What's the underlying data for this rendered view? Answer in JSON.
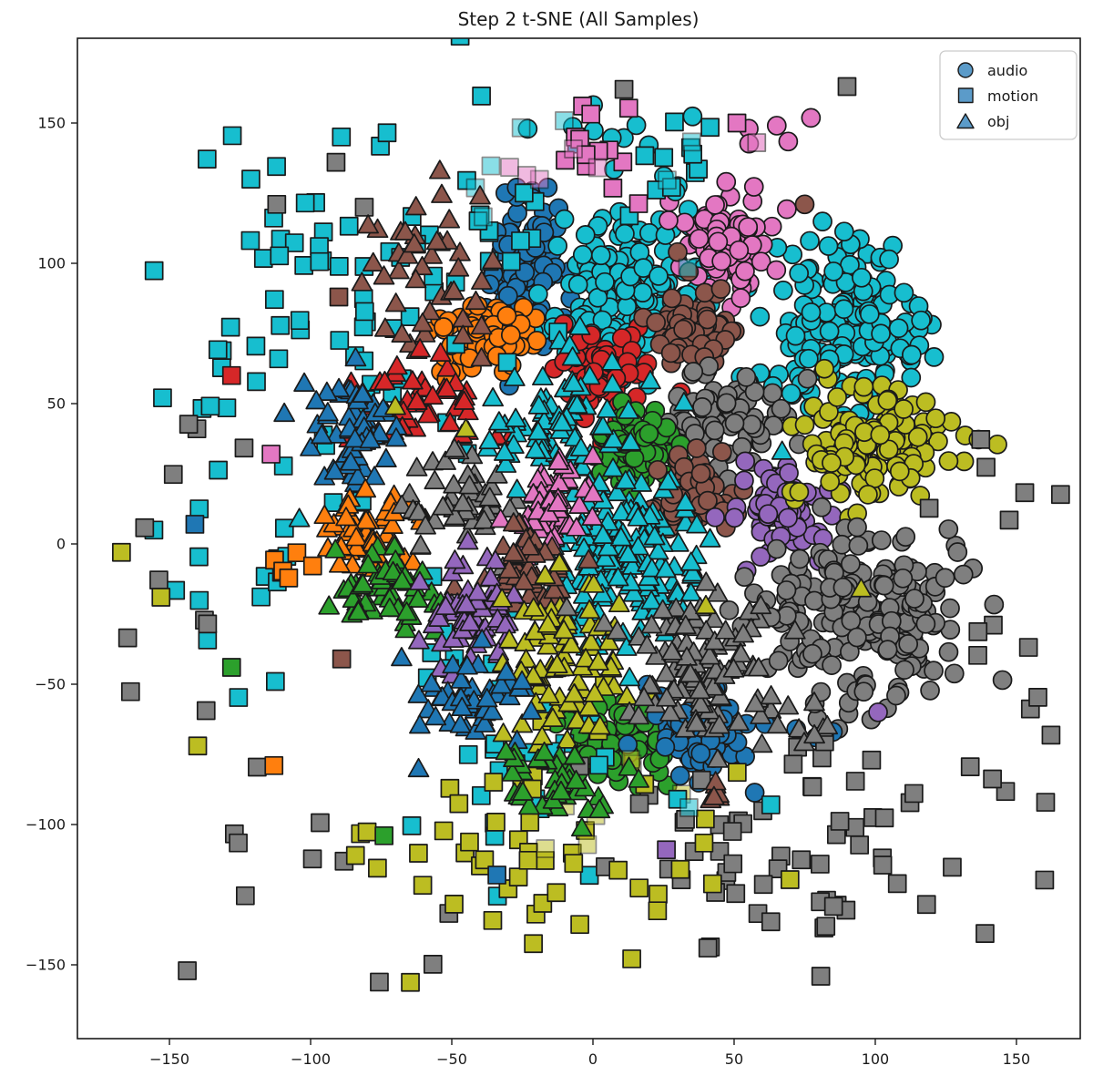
{
  "title": "Step 2 t-SNE (All Samples)",
  "legend": {
    "items": [
      {
        "label": "audio",
        "shape": "circle"
      },
      {
        "label": "motion",
        "shape": "square"
      },
      {
        "label": "obj",
        "shape": "triangle"
      }
    ],
    "marker_color": "#5b9bc9",
    "edge_color": "#1a1a1a"
  },
  "chart_data": {
    "type": "scatter",
    "title": "Step 2 t-SNE (All Samples)",
    "xlabel": "",
    "ylabel": "",
    "xlim": [
      -182.6,
      172.6
    ],
    "ylim": [
      -176.3,
      180.2
    ],
    "x_ticks": [
      -150,
      -100,
      -50,
      0,
      50,
      100,
      150
    ],
    "y_ticks": [
      -150,
      -100,
      -50,
      0,
      50,
      100,
      150
    ],
    "grid": false,
    "legend_position": "upper right",
    "series_shapes": {
      "audio": "circle",
      "motion": "square",
      "obj": "triangle"
    },
    "marker_edge_color": "#1a1a1a",
    "palette": {
      "blue": "#1f77b4",
      "orange": "#ff7f0e",
      "green": "#2ca02c",
      "red": "#d62728",
      "purple": "#9467bd",
      "brown": "#8c564b",
      "pink": "#e377c2",
      "gray": "#7f7f7f",
      "olive": "#bcbd22",
      "cyan": "#17becf"
    },
    "clusters": [
      {
        "series": "audio",
        "color": "blue",
        "x": -25,
        "y": 99,
        "sx": 7,
        "sy": 13,
        "n": 85
      },
      {
        "series": "audio",
        "color": "cyan",
        "x": 13,
        "y": 90,
        "sx": 15,
        "sy": 13,
        "n": 170
      },
      {
        "series": "audio",
        "color": "cyan",
        "x": 89,
        "y": 77,
        "sx": 14,
        "sy": 14,
        "n": 190
      },
      {
        "series": "audio",
        "color": "pink",
        "x": 47,
        "y": 106,
        "sx": 8,
        "sy": 8,
        "n": 85
      },
      {
        "series": "audio",
        "color": "orange",
        "x": -40,
        "y": 74,
        "sx": 9,
        "sy": 7,
        "n": 75
      },
      {
        "series": "audio",
        "color": "red",
        "x": 4,
        "y": 61,
        "sx": 8,
        "sy": 8,
        "n": 70
      },
      {
        "series": "audio",
        "color": "brown",
        "x": 36,
        "y": 76,
        "sx": 8,
        "sy": 7,
        "n": 65
      },
      {
        "series": "audio",
        "color": "gray",
        "x": 47,
        "y": 45,
        "sx": 11,
        "sy": 9,
        "n": 85
      },
      {
        "series": "audio",
        "color": "green",
        "x": 17,
        "y": 33,
        "sx": 7,
        "sy": 8,
        "n": 75
      },
      {
        "series": "audio",
        "color": "brown",
        "x": 37,
        "y": 18,
        "sx": 7,
        "sy": 7,
        "n": 60
      },
      {
        "series": "audio",
        "color": "purple",
        "x": 67,
        "y": 12,
        "sx": 8,
        "sy": 9,
        "n": 70
      },
      {
        "series": "audio",
        "color": "olive",
        "x": 99,
        "y": 34,
        "sx": 15,
        "sy": 10,
        "n": 140
      },
      {
        "series": "audio",
        "color": "gray",
        "x": 95,
        "y": -25,
        "sx": 17,
        "sy": 16,
        "n": 230
      },
      {
        "series": "audio",
        "color": "green",
        "x": 9,
        "y": -70,
        "sx": 8,
        "sy": 7,
        "n": 70
      },
      {
        "series": "audio",
        "color": "blue",
        "x": 38,
        "y": -69,
        "sx": 9,
        "sy": 7,
        "n": 70
      },
      {
        "series": "audio",
        "color": "cyan",
        "x": 12,
        "y": 140,
        "sx": 18,
        "sy": 12,
        "n": 12
      },
      {
        "series": "audio",
        "color": "pink",
        "x": 55,
        "y": 136,
        "sx": 10,
        "sy": 10,
        "n": 8
      },
      {
        "series": "motion",
        "color": "cyan",
        "x": -76,
        "y": 106,
        "sx": 40,
        "sy": 27,
        "n": 68
      },
      {
        "series": "motion",
        "color": "cyan",
        "x": 25,
        "y": 140,
        "sx": 12,
        "sy": 10,
        "n": 10
      },
      {
        "series": "motion",
        "color": "cyan",
        "x": -30,
        "y": 128,
        "sx": 28,
        "sy": 16,
        "n": 8,
        "opacity": 0.5
      },
      {
        "series": "motion",
        "color": "cyan",
        "x": -110,
        "y": 15,
        "sx": 25,
        "sy": 40,
        "n": 36
      },
      {
        "series": "motion",
        "color": "cyan",
        "x": -30,
        "y": -40,
        "sx": 16,
        "sy": 28,
        "n": 22
      },
      {
        "series": "motion",
        "color": "cyan",
        "x": -15,
        "y": -88,
        "sx": 28,
        "sy": 16,
        "n": 10
      },
      {
        "series": "motion",
        "color": "pink",
        "x": 0,
        "y": 141,
        "sx": 14,
        "sy": 9,
        "n": 13
      },
      {
        "series": "motion",
        "color": "pink",
        "x": -4,
        "y": 137,
        "sx": 12,
        "sy": 8,
        "n": 5,
        "opacity": 0.5
      },
      {
        "series": "motion",
        "color": "gray",
        "x": -145,
        "y": -5,
        "sx": 15,
        "sy": 33,
        "n": 13
      },
      {
        "series": "motion",
        "color": "gray",
        "x": -105,
        "y": -122,
        "sx": 26,
        "sy": 20,
        "n": 9
      },
      {
        "series": "motion",
        "color": "gray",
        "x": 72,
        "y": -110,
        "sx": 31,
        "sy": 21,
        "n": 60
      },
      {
        "series": "motion",
        "color": "gray",
        "x": 147,
        "y": -40,
        "sx": 11,
        "sy": 46,
        "n": 18
      },
      {
        "series": "motion",
        "color": "olive",
        "x": -25,
        "y": -110,
        "sx": 38,
        "sy": 21,
        "n": 52
      },
      {
        "series": "motion",
        "color": "olive",
        "x": 3,
        "y": -97,
        "sx": 14,
        "sy": 11,
        "n": 7,
        "opacity": 0.5
      },
      {
        "series": "motion",
        "color": "orange",
        "x": -104,
        "y": -9,
        "sx": 5,
        "sy": 5,
        "n": 6
      },
      {
        "series": "obj",
        "color": "brown",
        "x": -58,
        "y": 96,
        "sx": 11,
        "sy": 13,
        "n": 42
      },
      {
        "series": "obj",
        "color": "red",
        "x": -61,
        "y": 50,
        "sx": 11,
        "sy": 9,
        "n": 45
      },
      {
        "series": "obj",
        "color": "blue",
        "x": -85,
        "y": 42,
        "sx": 8,
        "sy": 9,
        "n": 60
      },
      {
        "series": "obj",
        "color": "orange",
        "x": -79,
        "y": 2,
        "sx": 10,
        "sy": 9,
        "n": 55
      },
      {
        "series": "obj",
        "color": "green",
        "x": -76,
        "y": -17,
        "sx": 10,
        "sy": 8,
        "n": 55
      },
      {
        "series": "obj",
        "color": "gray",
        "x": -46,
        "y": 14,
        "sx": 10,
        "sy": 10,
        "n": 50
      },
      {
        "series": "obj",
        "color": "cyan",
        "x": -12,
        "y": 44,
        "sx": 13,
        "sy": 11,
        "n": 85
      },
      {
        "series": "obj",
        "color": "cyan",
        "x": 10,
        "y": -3,
        "sx": 16,
        "sy": 14,
        "n": 160
      },
      {
        "series": "obj",
        "color": "pink",
        "x": -15,
        "y": 13,
        "sx": 7,
        "sy": 8,
        "n": 55
      },
      {
        "series": "obj",
        "color": "brown",
        "x": -24,
        "y": -12,
        "sx": 8,
        "sy": 8,
        "n": 50
      },
      {
        "series": "obj",
        "color": "purple",
        "x": -43,
        "y": -25,
        "sx": 8,
        "sy": 10,
        "n": 60
      },
      {
        "series": "obj",
        "color": "olive",
        "x": -9,
        "y": -42,
        "sx": 11,
        "sy": 13,
        "n": 90
      },
      {
        "series": "obj",
        "color": "gray",
        "x": 38,
        "y": -43,
        "sx": 14,
        "sy": 13,
        "n": 110
      },
      {
        "series": "obj",
        "color": "blue",
        "x": -43,
        "y": -56,
        "sx": 10,
        "sy": 9,
        "n": 55
      },
      {
        "series": "obj",
        "color": "green",
        "x": -14,
        "y": -86,
        "sx": 13,
        "sy": 8,
        "n": 45
      },
      {
        "series": "obj",
        "color": "brown",
        "x": 42,
        "y": -87,
        "sx": 3,
        "sy": 3,
        "n": 6
      },
      {
        "series": "obj",
        "color": "gray",
        "x": 78,
        "y": -62,
        "sx": 9,
        "sy": 5,
        "n": 7
      }
    ],
    "points": [
      {
        "series": "audio",
        "color": "brown",
        "x": 75,
        "y": 121
      },
      {
        "series": "audio",
        "color": "brown",
        "x": 34,
        "y": 97
      },
      {
        "series": "audio",
        "color": "brown",
        "x": 30,
        "y": 104
      },
      {
        "series": "audio",
        "color": "blue",
        "x": -16,
        "y": 127
      },
      {
        "series": "audio",
        "color": "blue",
        "x": -27,
        "y": 127
      },
      {
        "series": "audio",
        "color": "blue",
        "x": 72,
        "y": -66
      },
      {
        "series": "audio",
        "color": "blue",
        "x": 79,
        "y": -69
      },
      {
        "series": "audio",
        "color": "blue",
        "x": 85,
        "y": -67
      },
      {
        "series": "audio",
        "color": "purple",
        "x": 101,
        "y": -60
      },
      {
        "series": "motion",
        "color": "gray",
        "x": 90,
        "y": 163
      },
      {
        "series": "motion",
        "color": "gray",
        "x": 11,
        "y": 162
      },
      {
        "series": "motion",
        "color": "gray",
        "x": -91,
        "y": 136
      },
      {
        "series": "motion",
        "color": "gray",
        "x": -112,
        "y": 121
      },
      {
        "series": "motion",
        "color": "gray",
        "x": -81,
        "y": 120
      },
      {
        "series": "motion",
        "color": "cyan",
        "x": 30,
        "y": -91
      },
      {
        "series": "motion",
        "color": "cyan",
        "x": 63,
        "y": -93
      },
      {
        "series": "motion",
        "color": "cyan",
        "x": 34,
        "y": -94,
        "opacity": 0.55
      },
      {
        "series": "motion",
        "color": "red",
        "x": -128,
        "y": 60
      },
      {
        "series": "motion",
        "color": "blue",
        "x": -141,
        "y": 7
      },
      {
        "series": "motion",
        "color": "blue",
        "x": -34,
        "y": -118
      },
      {
        "series": "motion",
        "color": "pink",
        "x": -114,
        "y": 32
      },
      {
        "series": "motion",
        "color": "pink",
        "x": 58,
        "y": 143,
        "opacity": 0.6
      },
      {
        "series": "motion",
        "color": "pink",
        "x": 51,
        "y": 150
      },
      {
        "series": "motion",
        "color": "purple",
        "x": 26,
        "y": -109
      },
      {
        "series": "motion",
        "color": "green",
        "x": -74,
        "y": -104
      },
      {
        "series": "motion",
        "color": "green",
        "x": -128,
        "y": -44
      },
      {
        "series": "motion",
        "color": "brown",
        "x": -90,
        "y": 88
      },
      {
        "series": "motion",
        "color": "brown",
        "x": -89,
        "y": -41
      },
      {
        "series": "motion",
        "color": "orange",
        "x": -113,
        "y": -79
      },
      {
        "series": "motion",
        "color": "olive",
        "x": -167,
        "y": -3
      },
      {
        "series": "motion",
        "color": "olive",
        "x": -153,
        "y": -19
      },
      {
        "series": "motion",
        "color": "olive",
        "x": -140,
        "y": -72
      },
      {
        "series": "obj",
        "color": "cyan",
        "x": 67,
        "y": 33
      },
      {
        "series": "obj",
        "color": "cyan",
        "x": -104,
        "y": 9
      },
      {
        "series": "obj",
        "color": "brown",
        "x": -40,
        "y": 124
      },
      {
        "series": "obj",
        "color": "olive",
        "x": -70,
        "y": 49
      },
      {
        "series": "obj",
        "color": "olive",
        "x": -45,
        "y": 41
      },
      {
        "series": "obj",
        "color": "olive",
        "x": 95,
        "y": -16
      },
      {
        "series": "obj",
        "color": "olive",
        "x": 40,
        "y": -22
      }
    ]
  }
}
